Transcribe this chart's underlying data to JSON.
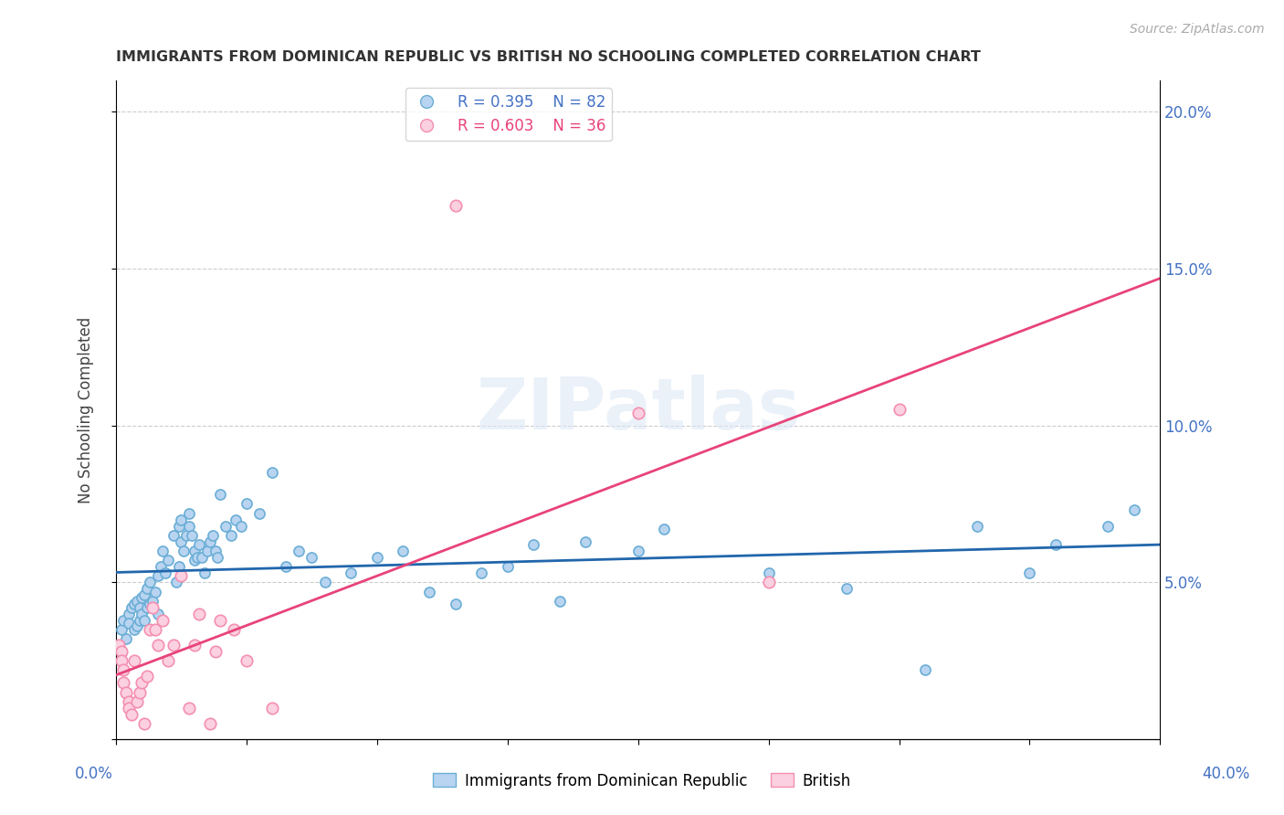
{
  "title": "IMMIGRANTS FROM DOMINICAN REPUBLIC VS BRITISH NO SCHOOLING COMPLETED CORRELATION CHART",
  "source": "Source: ZipAtlas.com",
  "ylabel": "No Schooling Completed",
  "xlim": [
    0.0,
    0.4
  ],
  "ylim": [
    0.0,
    0.21
  ],
  "yticks": [
    0.0,
    0.05,
    0.1,
    0.15,
    0.2
  ],
  "ytick_labels": [
    "",
    "5.0%",
    "10.0%",
    "15.0%",
    "20.0%"
  ],
  "xticks": [
    0.0,
    0.05,
    0.1,
    0.15,
    0.2,
    0.25,
    0.3,
    0.35,
    0.4
  ],
  "legend_r1": "R = 0.395",
  "legend_n1": "N = 82",
  "legend_r2": "R = 0.603",
  "legend_n2": "N = 36",
  "color_blue_face": "#b8d4f0",
  "color_blue_edge": "#6baed6",
  "color_pink_face": "#fbd0e0",
  "color_pink_edge": "#f48fb1",
  "color_blue_line": "#2166ac",
  "color_pink_line": "#e8437a",
  "watermark": "ZIPatlas",
  "blue_x": [
    0.002,
    0.003,
    0.004,
    0.005,
    0.005,
    0.006,
    0.007,
    0.007,
    0.008,
    0.008,
    0.009,
    0.009,
    0.01,
    0.01,
    0.011,
    0.011,
    0.012,
    0.012,
    0.013,
    0.013,
    0.014,
    0.015,
    0.016,
    0.016,
    0.017,
    0.018,
    0.019,
    0.02,
    0.022,
    0.023,
    0.024,
    0.024,
    0.025,
    0.025,
    0.026,
    0.027,
    0.028,
    0.028,
    0.029,
    0.03,
    0.03,
    0.031,
    0.032,
    0.033,
    0.034,
    0.035,
    0.036,
    0.037,
    0.038,
    0.039,
    0.04,
    0.042,
    0.044,
    0.046,
    0.048,
    0.05,
    0.055,
    0.06,
    0.065,
    0.07,
    0.075,
    0.08,
    0.09,
    0.1,
    0.11,
    0.12,
    0.13,
    0.14,
    0.15,
    0.16,
    0.17,
    0.18,
    0.2,
    0.21,
    0.25,
    0.28,
    0.31,
    0.33,
    0.35,
    0.38,
    0.36,
    0.39
  ],
  "blue_y": [
    0.035,
    0.038,
    0.032,
    0.04,
    0.037,
    0.042,
    0.035,
    0.043,
    0.036,
    0.044,
    0.038,
    0.042,
    0.04,
    0.045,
    0.038,
    0.046,
    0.042,
    0.048,
    0.043,
    0.05,
    0.044,
    0.047,
    0.04,
    0.052,
    0.055,
    0.06,
    0.053,
    0.057,
    0.065,
    0.05,
    0.068,
    0.055,
    0.063,
    0.07,
    0.06,
    0.065,
    0.068,
    0.072,
    0.065,
    0.06,
    0.057,
    0.058,
    0.062,
    0.058,
    0.053,
    0.06,
    0.063,
    0.065,
    0.06,
    0.058,
    0.078,
    0.068,
    0.065,
    0.07,
    0.068,
    0.075,
    0.072,
    0.085,
    0.055,
    0.06,
    0.058,
    0.05,
    0.053,
    0.058,
    0.06,
    0.047,
    0.043,
    0.053,
    0.055,
    0.062,
    0.044,
    0.063,
    0.06,
    0.067,
    0.053,
    0.048,
    0.022,
    0.068,
    0.053,
    0.068,
    0.062,
    0.073
  ],
  "pink_x": [
    0.001,
    0.002,
    0.002,
    0.003,
    0.003,
    0.004,
    0.005,
    0.005,
    0.006,
    0.007,
    0.008,
    0.009,
    0.01,
    0.011,
    0.012,
    0.013,
    0.014,
    0.015,
    0.016,
    0.018,
    0.02,
    0.022,
    0.025,
    0.028,
    0.03,
    0.032,
    0.036,
    0.038,
    0.04,
    0.045,
    0.05,
    0.06,
    0.13,
    0.2,
    0.25,
    0.3
  ],
  "pink_y": [
    0.03,
    0.028,
    0.025,
    0.022,
    0.018,
    0.015,
    0.012,
    0.01,
    0.008,
    0.025,
    0.012,
    0.015,
    0.018,
    0.005,
    0.02,
    0.035,
    0.042,
    0.035,
    0.03,
    0.038,
    0.025,
    0.03,
    0.052,
    0.01,
    0.03,
    0.04,
    0.005,
    0.028,
    0.038,
    0.035,
    0.025,
    0.01,
    0.17,
    0.104,
    0.05,
    0.105
  ]
}
